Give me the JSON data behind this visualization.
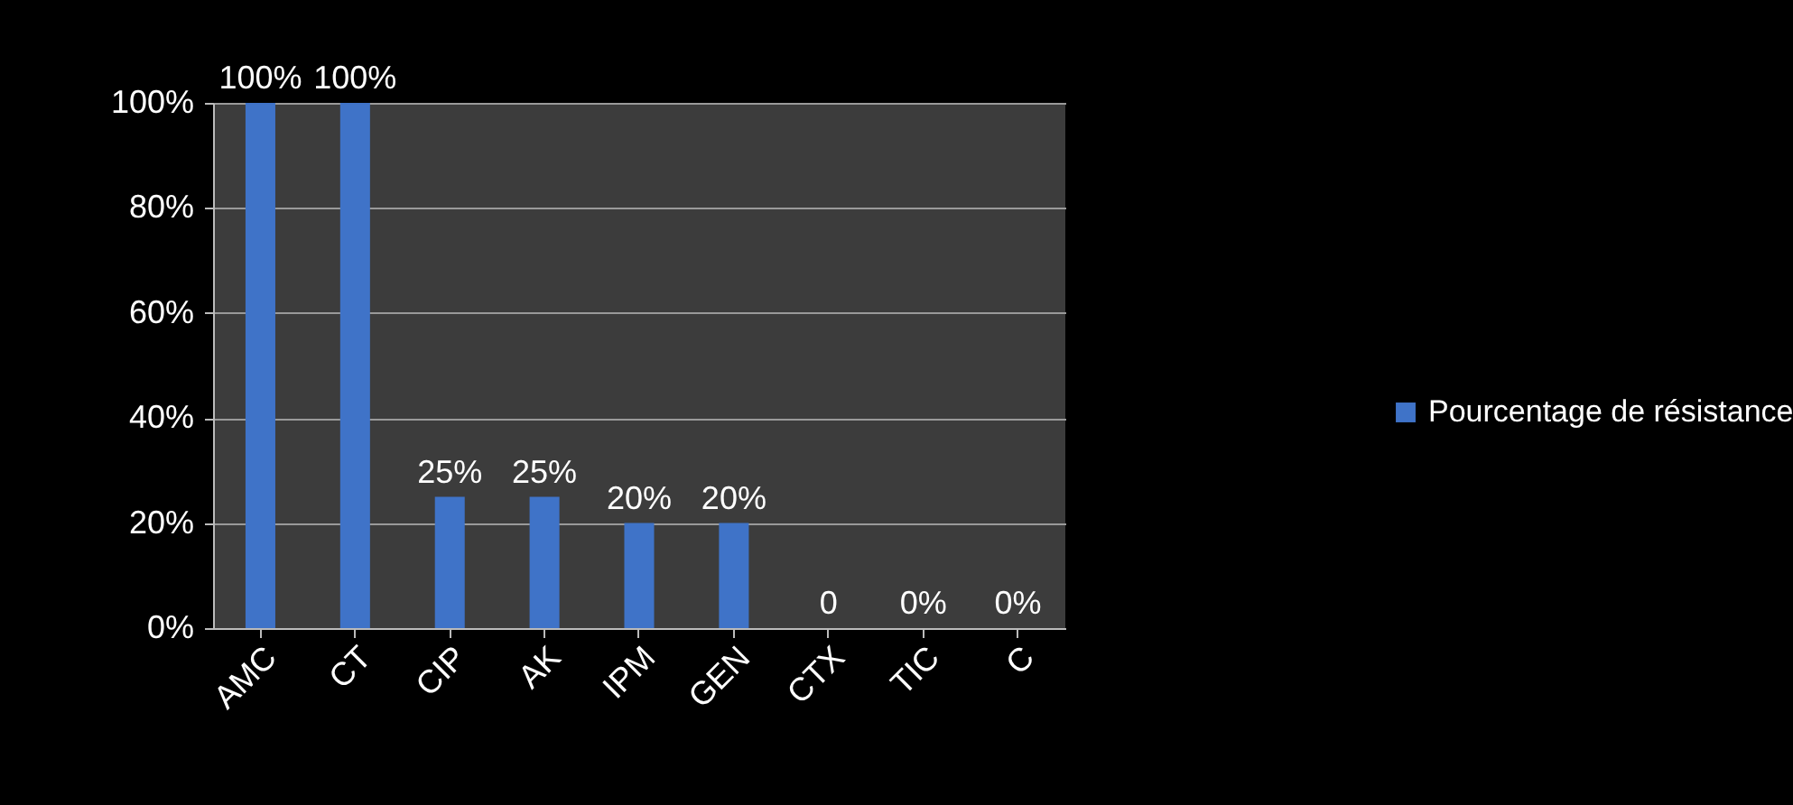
{
  "chart_data": {
    "type": "bar",
    "categories": [
      "AMC",
      "CT",
      "CIP",
      "AK",
      "IPM",
      "GEN",
      "CTX",
      "TIC",
      "C"
    ],
    "series": [
      {
        "name": "Pourcentage de résistance",
        "color": "#3f73c8",
        "values": [
          100,
          100,
          25,
          25,
          20,
          20,
          0,
          0,
          0
        ],
        "value_labels": [
          "100%",
          "100%",
          "25%",
          "25%",
          "20%",
          "20%",
          "0",
          "0%",
          "0%"
        ]
      }
    ],
    "ylim": [
      0,
      100
    ],
    "yticks": [
      {
        "value": 0,
        "label": "0%"
      },
      {
        "value": 20,
        "label": "20%"
      },
      {
        "value": 40,
        "label": "40%"
      },
      {
        "value": 60,
        "label": "60%"
      },
      {
        "value": 80,
        "label": "80%"
      },
      {
        "value": 100,
        "label": "100%"
      }
    ],
    "grid": "y",
    "legend": "right"
  }
}
